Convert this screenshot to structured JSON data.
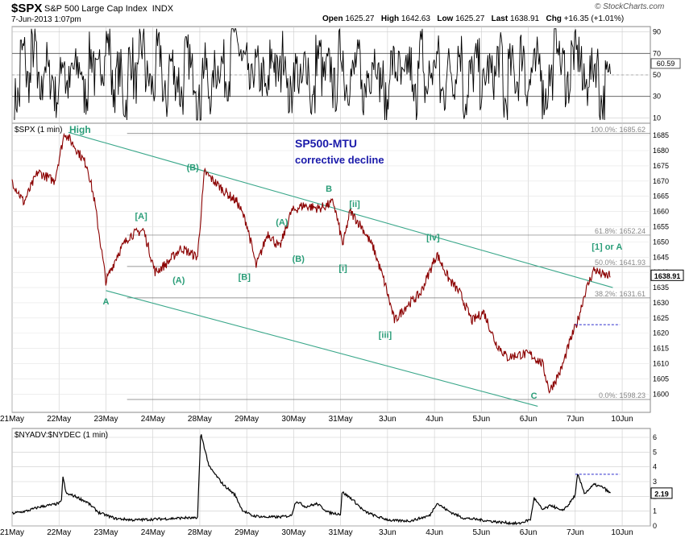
{
  "header": {
    "symbol": "$SPX",
    "name": "S&P 500 Large Cap Index",
    "exchange": "INDX",
    "date": "7-Jun-2013 1:07pm",
    "brand": "© StockCharts.com",
    "quote": {
      "open_label": "Open",
      "open": "1625.27",
      "high_label": "High",
      "high": "1642.63",
      "low_label": "Low",
      "low": "1625.27",
      "last_label": "Last",
      "last": "1638.91",
      "chg_label": "Chg",
      "chg": "+16.35 (+1.01%)"
    }
  },
  "colors": {
    "price": "#8b0000",
    "wave_label": "#2a9d78",
    "annotation": "#1a1aaa",
    "channel": "#3aa78a",
    "dashed": "#2b2bcc",
    "grid": "#cccccc"
  },
  "chart_data": [
    {
      "type": "line",
      "panel": "rsi-indicator",
      "values": [
        28,
        71,
        44,
        74,
        34,
        61,
        47,
        30,
        66,
        40,
        55,
        58,
        32,
        68,
        47,
        62,
        80,
        37,
        53,
        24,
        66,
        44,
        76,
        46,
        39,
        71,
        25,
        62,
        47,
        32,
        67,
        52,
        21,
        58,
        33,
        54,
        61,
        48,
        93,
        74,
        63,
        39,
        57,
        48,
        33,
        66,
        51,
        72,
        29,
        56,
        40,
        61,
        26,
        69,
        48,
        57,
        36,
        74,
        42,
        50,
        62,
        32,
        52,
        68,
        45,
        21,
        61,
        55,
        41,
        60,
        27,
        77,
        37,
        52,
        67,
        32,
        58,
        47,
        71,
        26,
        51,
        62,
        38,
        56,
        48,
        68,
        23,
        58,
        46,
        72,
        40,
        55,
        64,
        30,
        48,
        89,
        60,
        42,
        70,
        68,
        39,
        53,
        60,
        25,
        45,
        61
      ],
      "yticks": [
        10,
        30,
        50,
        70,
        90
      ],
      "ylim": [
        5,
        95
      ],
      "current_label": "60.59",
      "reference_lines": [
        30,
        70
      ]
    },
    {
      "type": "line",
      "panel": "price",
      "title": "$SPX (1 min)",
      "x_start": 0,
      "x_end": 13.6,
      "xlim": [
        0,
        13.6
      ],
      "ylim": [
        1594,
        1689
      ],
      "yticks": [
        1600,
        1605,
        1610,
        1615,
        1620,
        1625,
        1630,
        1635,
        1640,
        1645,
        1650,
        1655,
        1660,
        1665,
        1670,
        1675,
        1680,
        1685
      ],
      "xticks": [
        {
          "x": 0,
          "label": "21May"
        },
        {
          "x": 1,
          "label": "22May"
        },
        {
          "x": 2,
          "label": "23May"
        },
        {
          "x": 3,
          "label": "24May"
        },
        {
          "x": 4,
          "label": "28May"
        },
        {
          "x": 5,
          "label": "29May"
        },
        {
          "x": 6,
          "label": "30May"
        },
        {
          "x": 7,
          "label": "31May"
        },
        {
          "x": 8,
          "label": "3Jun"
        },
        {
          "x": 9,
          "label": "4Jun"
        },
        {
          "x": 10,
          "label": "5Jun"
        },
        {
          "x": 11,
          "label": "6Jun"
        },
        {
          "x": 12,
          "label": "7Jun"
        },
        {
          "x": 13,
          "label": "10Jun"
        }
      ],
      "key_points": [
        [
          0.0,
          1670
        ],
        [
          0.25,
          1663
        ],
        [
          0.55,
          1673
        ],
        [
          0.9,
          1670
        ],
        [
          1.12,
          1686
        ],
        [
          1.35,
          1681
        ],
        [
          1.6,
          1675
        ],
        [
          1.75,
          1664
        ],
        [
          2.0,
          1637
        ],
        [
          2.25,
          1646
        ],
        [
          2.5,
          1652
        ],
        [
          2.8,
          1654
        ],
        [
          3.05,
          1640
        ],
        [
          3.3,
          1643
        ],
        [
          3.6,
          1648
        ],
        [
          3.95,
          1645
        ],
        [
          4.1,
          1673
        ],
        [
          4.5,
          1667
        ],
        [
          4.8,
          1663
        ],
        [
          5.0,
          1656
        ],
        [
          5.2,
          1642
        ],
        [
          5.45,
          1653
        ],
        [
          5.7,
          1648
        ],
        [
          5.95,
          1660
        ],
        [
          6.2,
          1662
        ],
        [
          6.55,
          1661
        ],
        [
          6.85,
          1663
        ],
        [
          7.05,
          1649
        ],
        [
          7.2,
          1660
        ],
        [
          7.45,
          1655
        ],
        [
          7.7,
          1648
        ],
        [
          7.95,
          1636
        ],
        [
          8.15,
          1624
        ],
        [
          8.4,
          1629
        ],
        [
          8.7,
          1633
        ],
        [
          9.05,
          1646
        ],
        [
          9.3,
          1638
        ],
        [
          9.55,
          1633
        ],
        [
          9.8,
          1624
        ],
        [
          10.05,
          1627
        ],
        [
          10.3,
          1617
        ],
        [
          10.55,
          1612
        ],
        [
          10.8,
          1613
        ],
        [
          11.05,
          1613
        ],
        [
          11.3,
          1610
        ],
        [
          11.45,
          1601
        ],
        [
          11.7,
          1608
        ],
        [
          11.88,
          1617
        ],
        [
          12.05,
          1624
        ],
        [
          12.2,
          1633
        ],
        [
          12.4,
          1641
        ],
        [
          12.6,
          1639
        ],
        [
          12.75,
          1638.91
        ]
      ],
      "last_value": "1638.91",
      "labels": {
        "series_label": "$SPX (1 min)",
        "high": "High",
        "title": "SP500-MTU",
        "subtitle": "corrective decline",
        "wave_one": "[1] or A"
      },
      "fib_levels": [
        {
          "value": 1685.62,
          "label": "100.0%: 1685.62"
        },
        {
          "value": 1652.24,
          "label": "61.8%: 1652.24"
        },
        {
          "value": 1641.93,
          "label": "50.0%: 1641.93"
        },
        {
          "value": 1631.61,
          "label": "38.2%: 1631.61"
        },
        {
          "value": 1598.23,
          "label": "0.0%: 1598.23"
        }
      ],
      "wave_labels": [
        {
          "text": "[A]",
          "x": 2.75,
          "y": 1657.5
        },
        {
          "text": "A",
          "x": 2.0,
          "y": 1629.5
        },
        {
          "text": "(A)",
          "x": 3.55,
          "y": 1636.5
        },
        {
          "text": "(B)",
          "x": 3.85,
          "y": 1673.5
        },
        {
          "text": "[B]",
          "x": 4.95,
          "y": 1637.5
        },
        {
          "text": "(A)",
          "x": 5.75,
          "y": 1655.5
        },
        {
          "text": "(B)",
          "x": 6.1,
          "y": 1643.5
        },
        {
          "text": "B",
          "x": 6.75,
          "y": 1666.5
        },
        {
          "text": "[ii]",
          "x": 7.3,
          "y": 1661.5
        },
        {
          "text": "[i]",
          "x": 7.05,
          "y": 1640.5
        },
        {
          "text": "[iii]",
          "x": 7.95,
          "y": 1618.5
        },
        {
          "text": "[iv]",
          "x": 8.97,
          "y": 1650.5
        },
        {
          "text": "C",
          "x": 11.12,
          "y": 1598.5
        }
      ],
      "channel_lines": [
        {
          "from": [
            1.2,
            1686
          ],
          "to": [
            12.8,
            1635
          ]
        },
        {
          "from": [
            2.0,
            1634
          ],
          "to": [
            11.2,
            1596
          ]
        }
      ],
      "dashed_level": {
        "value": 1622.8,
        "from": 12.0,
        "to": 12.95
      }
    },
    {
      "type": "line",
      "panel": "breadth",
      "title": "$NYADV:$NYDEC (1 min)",
      "xlim": [
        0,
        13.6
      ],
      "ylim": [
        0,
        6.6
      ],
      "yticks": [
        0,
        1,
        2,
        3,
        4,
        5,
        6
      ],
      "last_value": "2.19",
      "key_points": [
        [
          0.0,
          0.85
        ],
        [
          0.3,
          1.0
        ],
        [
          0.6,
          1.3
        ],
        [
          0.9,
          1.45
        ],
        [
          1.05,
          1.6
        ],
        [
          1.08,
          3.4
        ],
        [
          1.15,
          2.2
        ],
        [
          1.35,
          2.0
        ],
        [
          1.6,
          1.6
        ],
        [
          1.85,
          0.9
        ],
        [
          2.2,
          0.5
        ],
        [
          2.6,
          0.4
        ],
        [
          3.0,
          0.45
        ],
        [
          3.4,
          0.5
        ],
        [
          3.7,
          0.55
        ],
        [
          3.95,
          0.5
        ],
        [
          4.02,
          6.3
        ],
        [
          4.2,
          4.0
        ],
        [
          4.5,
          2.8
        ],
        [
          4.75,
          2.1
        ],
        [
          4.9,
          1.1
        ],
        [
          5.1,
          0.7
        ],
        [
          5.4,
          0.6
        ],
        [
          5.7,
          0.6
        ],
        [
          5.95,
          0.7
        ],
        [
          6.05,
          1.7
        ],
        [
          6.25,
          1.3
        ],
        [
          6.5,
          1.5
        ],
        [
          6.75,
          0.9
        ],
        [
          7.0,
          0.8
        ],
        [
          7.03,
          2.3
        ],
        [
          7.25,
          1.8
        ],
        [
          7.5,
          1.0
        ],
        [
          7.8,
          0.6
        ],
        [
          8.1,
          0.35
        ],
        [
          8.5,
          0.35
        ],
        [
          8.9,
          0.7
        ],
        [
          9.05,
          1.55
        ],
        [
          9.3,
          1.0
        ],
        [
          9.6,
          0.55
        ],
        [
          10.0,
          0.4
        ],
        [
          10.4,
          0.25
        ],
        [
          10.8,
          0.15
        ],
        [
          11.05,
          0.45
        ],
        [
          11.12,
          1.9
        ],
        [
          11.3,
          1.1
        ],
        [
          11.5,
          1.4
        ],
        [
          11.7,
          1.0
        ],
        [
          11.85,
          1.4
        ],
        [
          12.0,
          2.1
        ],
        [
          12.05,
          3.5
        ],
        [
          12.2,
          2.2
        ],
        [
          12.4,
          2.8
        ],
        [
          12.6,
          2.6
        ],
        [
          12.75,
          2.19
        ]
      ],
      "dashed_level": {
        "value": 3.5,
        "from": 12.0,
        "to": 12.95
      }
    }
  ]
}
